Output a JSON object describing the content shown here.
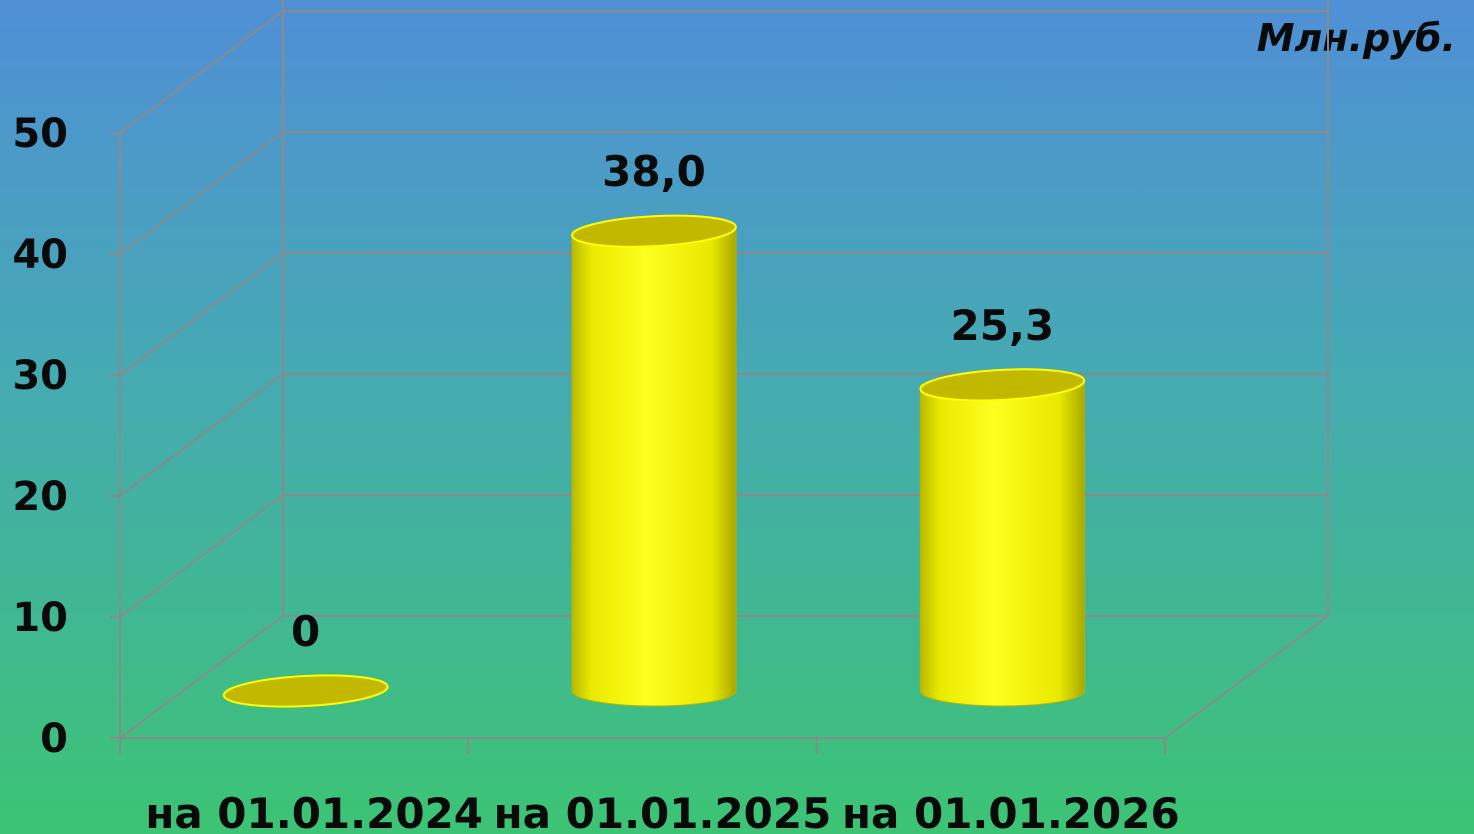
{
  "unit_label": "Млн.руб.",
  "colors": {
    "bar_front": "#ffff00",
    "bar_edge": "#b5b500",
    "bar_top": "#c2b800",
    "grid": "#8a8a8a"
  },
  "chart_data": {
    "type": "bar",
    "style": "3d-cylinder",
    "categories": [
      "на 01.01.2024",
      "на 01.01.2025",
      "на 01.01.2026"
    ],
    "values": [
      0,
      38.0,
      25.3
    ],
    "data_labels": [
      "0",
      "38,0",
      "25,3"
    ],
    "ylim": [
      0,
      50
    ],
    "yticks": [
      0,
      10,
      20,
      30,
      40,
      50
    ],
    "grid": true,
    "legend": "none"
  }
}
